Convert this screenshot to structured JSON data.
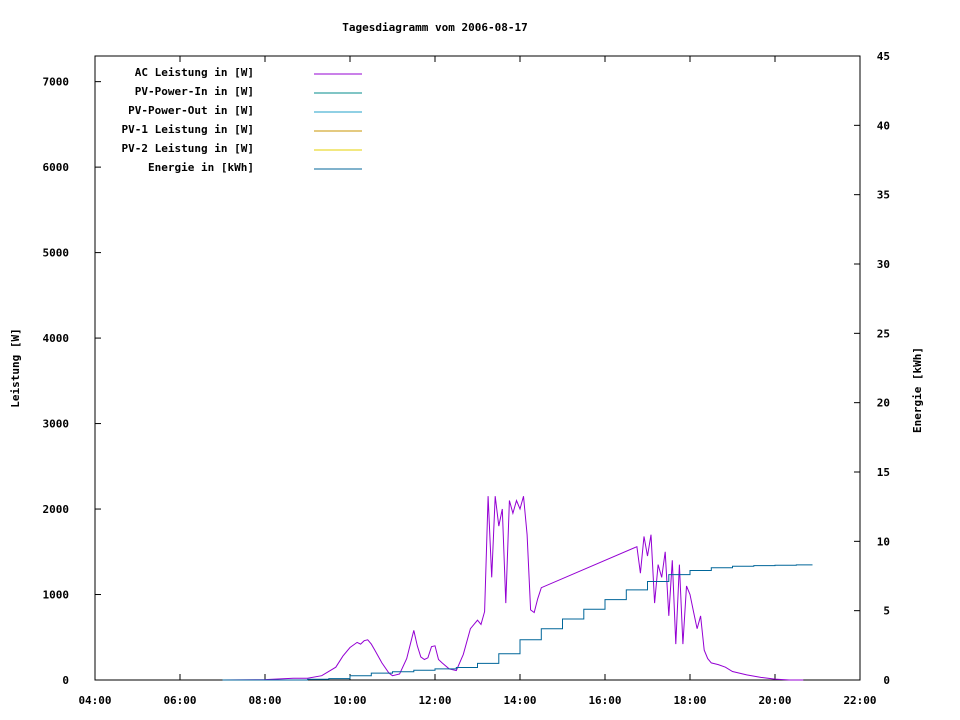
{
  "chart_data": {
    "type": "line",
    "title": "Tagesdiagramm vom 2006-08-17",
    "xlabel": "",
    "ylabel": "Leistung [W]",
    "y2label": "Energie [kWh]",
    "xlim": [
      "04:00",
      "22:00"
    ],
    "ylim": [
      0,
      7300
    ],
    "y2lim": [
      0,
      45
    ],
    "x_ticks": [
      "04:00",
      "06:00",
      "08:00",
      "10:00",
      "12:00",
      "14:00",
      "16:00",
      "18:00",
      "20:00",
      "22:00"
    ],
    "y_ticks": [
      0,
      1000,
      2000,
      3000,
      4000,
      5000,
      6000,
      7000
    ],
    "y2_ticks": [
      0,
      5,
      10,
      15,
      20,
      25,
      30,
      35,
      40,
      45
    ],
    "grid": false,
    "legend_position": "top-left",
    "series": [
      {
        "name": "AC Leistung in [W]",
        "axis": "left",
        "color": "#9400d3",
        "x": [
          "07:00",
          "08:00",
          "08:40",
          "09:00",
          "09:20",
          "09:40",
          "09:50",
          "10:00",
          "10:10",
          "10:15",
          "10:20",
          "10:25",
          "10:30",
          "10:35",
          "10:45",
          "10:55",
          "11:00",
          "11:10",
          "11:20",
          "11:30",
          "11:35",
          "11:40",
          "11:45",
          "11:50",
          "11:55",
          "12:00",
          "12:05",
          "12:10",
          "12:20",
          "12:30",
          "12:40",
          "12:50",
          "13:00",
          "13:05",
          "13:10",
          "13:15",
          "13:20",
          "13:25",
          "13:30",
          "13:35",
          "13:40",
          "13:45",
          "13:50",
          "13:55",
          "14:00",
          "14:05",
          "14:10",
          "14:15",
          "14:20",
          "14:25",
          "14:30",
          "16:45",
          "16:50",
          "16:55",
          "17:00",
          "17:05",
          "17:10",
          "17:15",
          "17:20",
          "17:25",
          "17:30",
          "17:35",
          "17:40",
          "17:45",
          "17:50",
          "17:55",
          "18:00",
          "18:05",
          "18:10",
          "18:15",
          "18:20",
          "18:25",
          "18:30",
          "18:40",
          "18:50",
          "19:00",
          "19:20",
          "19:40",
          "20:00",
          "20:20",
          "20:40"
        ],
        "y": [
          0,
          5,
          20,
          20,
          50,
          150,
          280,
          380,
          440,
          420,
          460,
          470,
          420,
          350,
          200,
          80,
          50,
          70,
          250,
          580,
          400,
          270,
          240,
          260,
          390,
          400,
          240,
          200,
          130,
          110,
          300,
          600,
          700,
          650,
          800,
          2150,
          1200,
          2150,
          1800,
          2000,
          900,
          2100,
          1950,
          2100,
          2000,
          2150,
          1700,
          820,
          790,
          950,
          1080,
          1560,
          1250,
          1680,
          1450,
          1700,
          900,
          1350,
          1200,
          1500,
          750,
          1400,
          420,
          1350,
          420,
          1100,
          1000,
          800,
          600,
          750,
          350,
          250,
          200,
          180,
          150,
          100,
          60,
          30,
          10,
          0,
          0
        ]
      },
      {
        "name": "PV-Power-In in [W]",
        "axis": "left",
        "color": "#008b8b",
        "x": [],
        "y": []
      },
      {
        "name": "PV-Power-Out in [W]",
        "axis": "left",
        "color": "#20a0c8",
        "x": [],
        "y": []
      },
      {
        "name": "PV-1 Leistung in [W]",
        "axis": "left",
        "color": "#c89600",
        "x": [],
        "y": []
      },
      {
        "name": "PV-2 Leistung in [W]",
        "axis": "left",
        "color": "#e6d200",
        "x": [],
        "y": []
      },
      {
        "name": "Energie in [kWh]",
        "axis": "right",
        "color": "#006699",
        "x": [
          "07:00",
          "09:00",
          "09:30",
          "10:00",
          "10:30",
          "11:00",
          "11:30",
          "12:00",
          "12:30",
          "13:00",
          "13:30",
          "14:00",
          "14:30",
          "15:00",
          "15:30",
          "16:00",
          "16:30",
          "17:00",
          "17:30",
          "18:00",
          "18:30",
          "19:00",
          "19:30",
          "20:00",
          "20:30",
          "20:53"
        ],
        "y": [
          0,
          0.05,
          0.1,
          0.3,
          0.5,
          0.6,
          0.7,
          0.8,
          0.9,
          1.2,
          1.9,
          2.9,
          3.7,
          4.4,
          5.1,
          5.8,
          6.5,
          7.1,
          7.6,
          7.9,
          8.1,
          8.2,
          8.25,
          8.28,
          8.3,
          8.3
        ]
      }
    ]
  }
}
